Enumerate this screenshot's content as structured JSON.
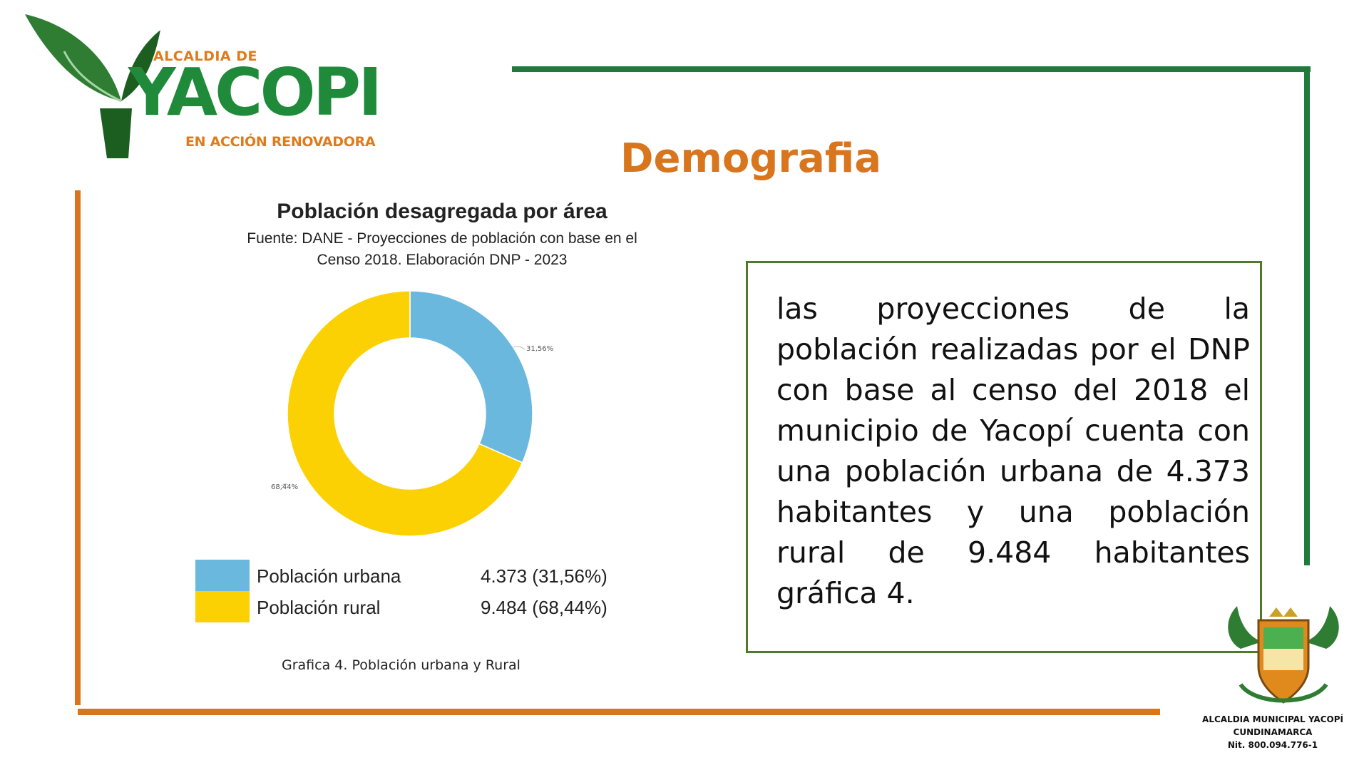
{
  "logo": {
    "line1": "ALCALDIA DE",
    "line2": "YACOPI",
    "line3": "EN ACCIÓN RENOVADORA"
  },
  "heading": "Demografia",
  "chart_data": {
    "type": "pie",
    "title": "Población desagregada por área",
    "subtitle_line1": "Fuente: DANE - Proyecciones de población con base en el",
    "subtitle_line2": "Censo 2018. Elaboración DNP - 2023",
    "categories": [
      "Población urbana",
      "Población rural"
    ],
    "values": [
      4373,
      9484
    ],
    "percent_labels": [
      "31,56%",
      "68,44%"
    ],
    "legend_values": [
      "4.373 (31,56%)",
      "9.484 (68,44%)"
    ],
    "colors": [
      "#6bb8df",
      "#fcd104"
    ],
    "donut": true,
    "legend": "bottom"
  },
  "caption": "Grafica 4. Población urbana y Rural",
  "body_text": "las proyecciones de la población realizadas por el DNP con base al censo del 2018 el municipio de Yacopí cuenta con una población urbana de 4.373 habitantes y una población rural de 9.484 habitantes gráfica 4.",
  "crest": {
    "line1": "ALCALDIA MUNICIPAL YACOPÍ",
    "line2": "CUNDINAMARCA",
    "line3": "Nit. 800.094.776-1"
  }
}
